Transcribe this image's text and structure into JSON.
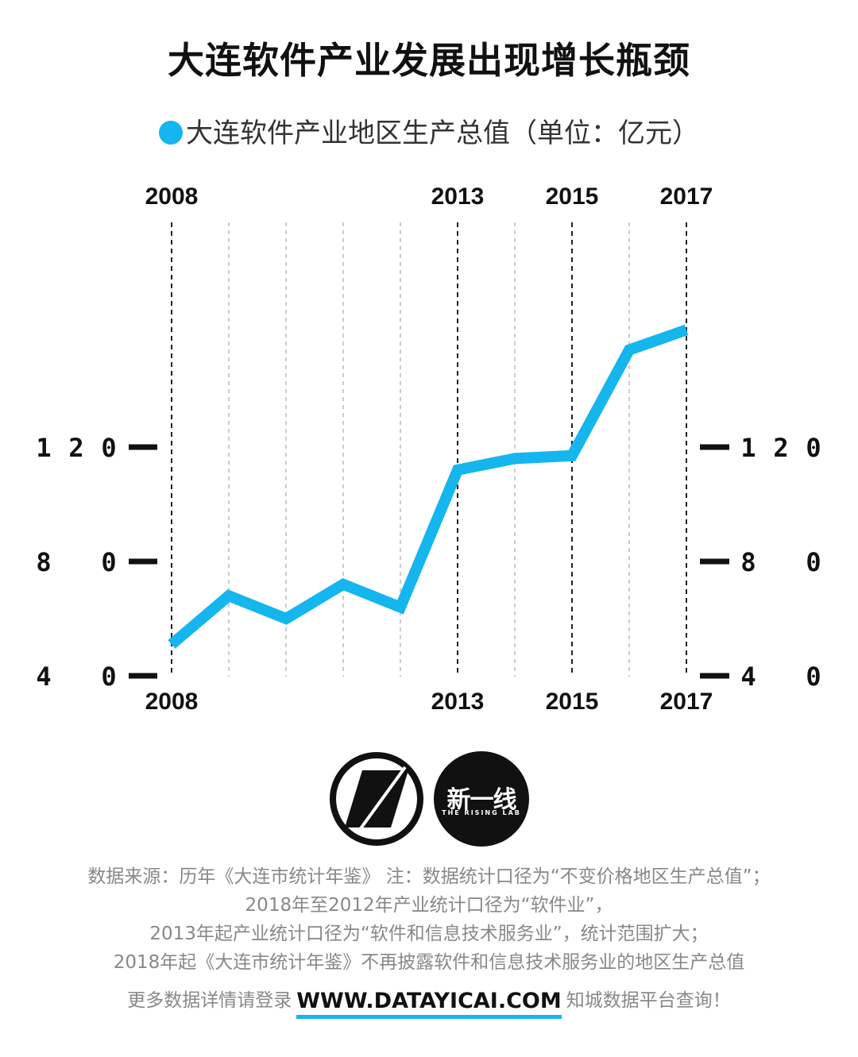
{
  "title": "大连软件产业发展出现增长瓶颈",
  "legend": "大连软件产业地区生产总值（单位：亿元）",
  "colors": {
    "line": "#15b5ee",
    "text": "#111111",
    "note": "#888888"
  },
  "chart_data": {
    "type": "line",
    "title": "大连软件产业发展出现增长瓶颈",
    "x": [
      2008,
      2009,
      2010,
      2011,
      2012,
      2013,
      2014,
      2015,
      2016,
      2017
    ],
    "series": [
      {
        "name": "大连软件产业地区生产总值（单位：亿元）",
        "values": [
          51,
          68,
          60,
          72,
          64,
          112,
          116,
          117,
          154,
          161
        ]
      }
    ],
    "labeled_years": [
      2008,
      2013,
      2015,
      2017
    ],
    "y_ticks": [
      40,
      80,
      120
    ],
    "ylim": [
      0,
      160
    ],
    "grid": "vertical dashed lines per year",
    "legend_position": "top-center"
  },
  "notes": [
    "数据来源：历年《大连市统计年鉴》 注：数据统计口径为“不变价格地区生产总值”；",
    "2018年至2012年产业统计口径为“软件业”，",
    "2013年起产业统计口径为“软件和信息技术服务业”，统计范围扩大；",
    "2018年起《大连市统计年鉴》不再披露软件和信息技术服务业的地区生产总值"
  ],
  "footer": {
    "prefix": "更多数据详情请登录",
    "url": "WWW.DATAYICAI.COM",
    "suffix": "知城数据平台查询！"
  },
  "logo": {
    "name_cn": "新一线",
    "name_en": "THE RISING LAB"
  }
}
